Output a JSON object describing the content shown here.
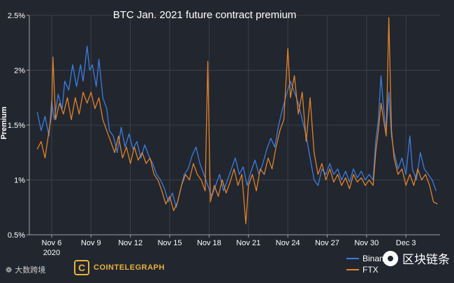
{
  "chart_data": {
    "type": "line",
    "title": "BTC Jan. 2021 future contract premium",
    "ylabel": "Premium",
    "xlabel": "",
    "ylim": [
      0.5,
      2.5
    ],
    "yticks": [
      {
        "value": 0.5,
        "label": "0.5%"
      },
      {
        "value": 1.0,
        "label": "1%"
      },
      {
        "value": 1.5,
        "label": "1.5%"
      },
      {
        "value": 2.0,
        "label": "2%"
      },
      {
        "value": 2.5,
        "label": "2.5%"
      }
    ],
    "xticks": [
      {
        "value": 6,
        "label": "Nov 6",
        "sublabel": "2020"
      },
      {
        "value": 9,
        "label": "Nov 9"
      },
      {
        "value": 12,
        "label": "Nov 12"
      },
      {
        "value": 15,
        "label": "Nov 15"
      },
      {
        "value": 18,
        "label": "Nov 18"
      },
      {
        "value": 21,
        "label": "Nov 21"
      },
      {
        "value": 24,
        "label": "Nov 24"
      },
      {
        "value": 27,
        "label": "Nov 27"
      },
      {
        "value": 30,
        "label": "Nov 30"
      },
      {
        "value": 33,
        "label": "Dec 3"
      }
    ],
    "xlim": [
      4.3,
      35.6
    ],
    "grid": true,
    "legend_position": "bottom-right",
    "series": [
      {
        "name": "Binance",
        "color": "#3a7ee0",
        "points": [
          [
            4.9,
            1.62
          ],
          [
            5.2,
            1.45
          ],
          [
            5.5,
            1.58
          ],
          [
            5.8,
            1.4
          ],
          [
            6.0,
            1.72
          ],
          [
            6.2,
            1.55
          ],
          [
            6.5,
            1.78
          ],
          [
            6.8,
            1.65
          ],
          [
            7.0,
            1.9
          ],
          [
            7.3,
            1.82
          ],
          [
            7.6,
            2.05
          ],
          [
            7.9,
            1.85
          ],
          [
            8.2,
            2.05
          ],
          [
            8.4,
            1.9
          ],
          [
            8.7,
            2.22
          ],
          [
            8.9,
            2.0
          ],
          [
            9.1,
            2.05
          ],
          [
            9.4,
            1.85
          ],
          [
            9.6,
            2.1
          ],
          [
            9.9,
            1.75
          ],
          [
            10.2,
            1.65
          ],
          [
            10.4,
            1.45
          ],
          [
            10.7,
            1.4
          ],
          [
            11.0,
            1.25
          ],
          [
            11.3,
            1.48
          ],
          [
            11.6,
            1.3
          ],
          [
            11.9,
            1.42
          ],
          [
            12.2,
            1.28
          ],
          [
            12.5,
            1.35
          ],
          [
            12.8,
            1.2
          ],
          [
            13.1,
            1.32
          ],
          [
            13.4,
            1.22
          ],
          [
            13.7,
            1.15
          ],
          [
            14.0,
            1.05
          ],
          [
            14.3,
            1.0
          ],
          [
            14.6,
            0.92
          ],
          [
            14.9,
            0.8
          ],
          [
            15.2,
            0.88
          ],
          [
            15.5,
            0.75
          ],
          [
            15.8,
            0.9
          ],
          [
            16.1,
            1.05
          ],
          [
            16.4,
            1.1
          ],
          [
            16.7,
            1.22
          ],
          [
            17.0,
            1.3
          ],
          [
            17.3,
            1.15
          ],
          [
            17.6,
            1.05
          ],
          [
            17.9,
            0.95
          ],
          [
            18.2,
            0.85
          ],
          [
            18.5,
            0.95
          ],
          [
            18.8,
            1.05
          ],
          [
            19.1,
            0.9
          ],
          [
            19.4,
            1.0
          ],
          [
            19.7,
            1.1
          ],
          [
            20.0,
            1.2
          ],
          [
            20.3,
            1.05
          ],
          [
            20.6,
            1.12
          ],
          [
            20.9,
            0.95
          ],
          [
            21.2,
            1.08
          ],
          [
            21.5,
            1.18
          ],
          [
            21.8,
            1.05
          ],
          [
            22.1,
            1.15
          ],
          [
            22.4,
            1.28
          ],
          [
            22.7,
            1.38
          ],
          [
            23.0,
            1.3
          ],
          [
            23.3,
            1.5
          ],
          [
            23.6,
            1.65
          ],
          [
            23.9,
            1.78
          ],
          [
            24.2,
            1.9
          ],
          [
            24.5,
            1.8
          ],
          [
            24.8,
            1.7
          ],
          [
            25.1,
            1.55
          ],
          [
            25.4,
            1.4
          ],
          [
            25.7,
            1.2
          ],
          [
            26.0,
            1.0
          ],
          [
            26.3,
            0.95
          ],
          [
            26.6,
            1.1
          ],
          [
            26.9,
            1.05
          ],
          [
            27.2,
            1.15
          ],
          [
            27.5,
            1.05
          ],
          [
            27.8,
            1.1
          ],
          [
            28.1,
            1.0
          ],
          [
            28.4,
            1.08
          ],
          [
            28.7,
            0.98
          ],
          [
            29.0,
            1.1
          ],
          [
            29.3,
            1.02
          ],
          [
            29.6,
            1.08
          ],
          [
            29.9,
            1.0
          ],
          [
            30.2,
            1.05
          ],
          [
            30.5,
            1.0
          ],
          [
            30.7,
            1.35
          ],
          [
            30.9,
            1.55
          ],
          [
            31.1,
            1.95
          ],
          [
            31.3,
            1.65
          ],
          [
            31.5,
            1.45
          ],
          [
            31.7,
            1.8
          ],
          [
            31.9,
            1.4
          ],
          [
            32.1,
            1.25
          ],
          [
            32.4,
            1.1
          ],
          [
            32.7,
            1.2
          ],
          [
            33.0,
            1.05
          ],
          [
            33.3,
            1.4
          ],
          [
            33.5,
            1.1
          ],
          [
            33.8,
            1.0
          ],
          [
            34.1,
            1.25
          ],
          [
            34.4,
            1.1
          ],
          [
            34.7,
            1.05
          ],
          [
            35.0,
            1.0
          ],
          [
            35.3,
            0.9
          ]
        ]
      },
      {
        "name": "FTX",
        "color": "#e0832a",
        "points": [
          [
            4.9,
            1.28
          ],
          [
            5.2,
            1.35
          ],
          [
            5.5,
            1.2
          ],
          [
            5.8,
            1.45
          ],
          [
            6.0,
            1.6
          ],
          [
            6.1,
            2.12
          ],
          [
            6.3,
            1.55
          ],
          [
            6.6,
            1.7
          ],
          [
            6.9,
            1.6
          ],
          [
            7.2,
            1.75
          ],
          [
            7.5,
            1.55
          ],
          [
            7.8,
            1.75
          ],
          [
            8.1,
            1.6
          ],
          [
            8.4,
            1.8
          ],
          [
            8.7,
            1.7
          ],
          [
            9.0,
            1.8
          ],
          [
            9.3,
            1.65
          ],
          [
            9.6,
            1.75
          ],
          [
            9.9,
            1.55
          ],
          [
            10.2,
            1.45
          ],
          [
            10.5,
            1.35
          ],
          [
            10.8,
            1.25
          ],
          [
            11.1,
            1.4
          ],
          [
            11.4,
            1.2
          ],
          [
            11.7,
            1.3
          ],
          [
            12.0,
            1.15
          ],
          [
            12.3,
            1.3
          ],
          [
            12.6,
            1.18
          ],
          [
            12.9,
            1.25
          ],
          [
            13.2,
            1.15
          ],
          [
            13.5,
            1.2
          ],
          [
            13.8,
            1.05
          ],
          [
            14.1,
            1.0
          ],
          [
            14.4,
            0.9
          ],
          [
            14.7,
            0.78
          ],
          [
            15.0,
            0.85
          ],
          [
            15.3,
            0.72
          ],
          [
            15.6,
            0.8
          ],
          [
            15.9,
            0.95
          ],
          [
            16.2,
            1.05
          ],
          [
            16.5,
            1.0
          ],
          [
            16.8,
            1.15
          ],
          [
            17.1,
            1.05
          ],
          [
            17.4,
            1.0
          ],
          [
            17.7,
            0.9
          ],
          [
            17.9,
            2.08
          ],
          [
            18.1,
            0.8
          ],
          [
            18.4,
            0.95
          ],
          [
            18.7,
            0.85
          ],
          [
            19.0,
            1.0
          ],
          [
            19.3,
            0.88
          ],
          [
            19.6,
            0.98
          ],
          [
            19.9,
            1.1
          ],
          [
            20.2,
            0.95
          ],
          [
            20.5,
            1.05
          ],
          [
            20.8,
            0.6
          ],
          [
            21.0,
            0.95
          ],
          [
            21.3,
            1.05
          ],
          [
            21.6,
            0.9
          ],
          [
            21.9,
            1.1
          ],
          [
            22.2,
            1.05
          ],
          [
            22.5,
            1.2
          ],
          [
            22.8,
            1.1
          ],
          [
            23.1,
            1.3
          ],
          [
            23.4,
            1.45
          ],
          [
            23.7,
            1.55
          ],
          [
            24.0,
            2.2
          ],
          [
            24.2,
            1.75
          ],
          [
            24.5,
            1.95
          ],
          [
            24.8,
            1.6
          ],
          [
            25.1,
            1.8
          ],
          [
            25.4,
            1.35
          ],
          [
            25.7,
            1.75
          ],
          [
            26.0,
            1.25
          ],
          [
            26.3,
            1.05
          ],
          [
            26.6,
            1.15
          ],
          [
            26.9,
            1.0
          ],
          [
            27.2,
            1.1
          ],
          [
            27.5,
            0.98
          ],
          [
            27.8,
            1.05
          ],
          [
            28.1,
            0.95
          ],
          [
            28.4,
            1.02
          ],
          [
            28.7,
            0.92
          ],
          [
            29.0,
            1.05
          ],
          [
            29.3,
            0.98
          ],
          [
            29.6,
            1.02
          ],
          [
            29.9,
            0.95
          ],
          [
            30.2,
            1.0
          ],
          [
            30.5,
            0.95
          ],
          [
            30.7,
            1.25
          ],
          [
            30.9,
            1.45
          ],
          [
            31.1,
            1.7
          ],
          [
            31.3,
            1.55
          ],
          [
            31.5,
            1.4
          ],
          [
            31.7,
            2.48
          ],
          [
            31.9,
            1.45
          ],
          [
            32.1,
            1.2
          ],
          [
            32.4,
            1.05
          ],
          [
            32.7,
            1.1
          ],
          [
            33.0,
            0.95
          ],
          [
            33.3,
            1.05
          ],
          [
            33.6,
            0.95
          ],
          [
            33.9,
            1.1
          ],
          [
            34.2,
            1.0
          ],
          [
            34.5,
            1.05
          ],
          [
            34.8,
            0.95
          ],
          [
            35.1,
            0.8
          ],
          [
            35.4,
            0.78
          ]
        ]
      }
    ]
  },
  "watermarks": {
    "source_left": "大数跨境",
    "brand": "COINTELEGRAPH",
    "wechat": "区块链条"
  }
}
